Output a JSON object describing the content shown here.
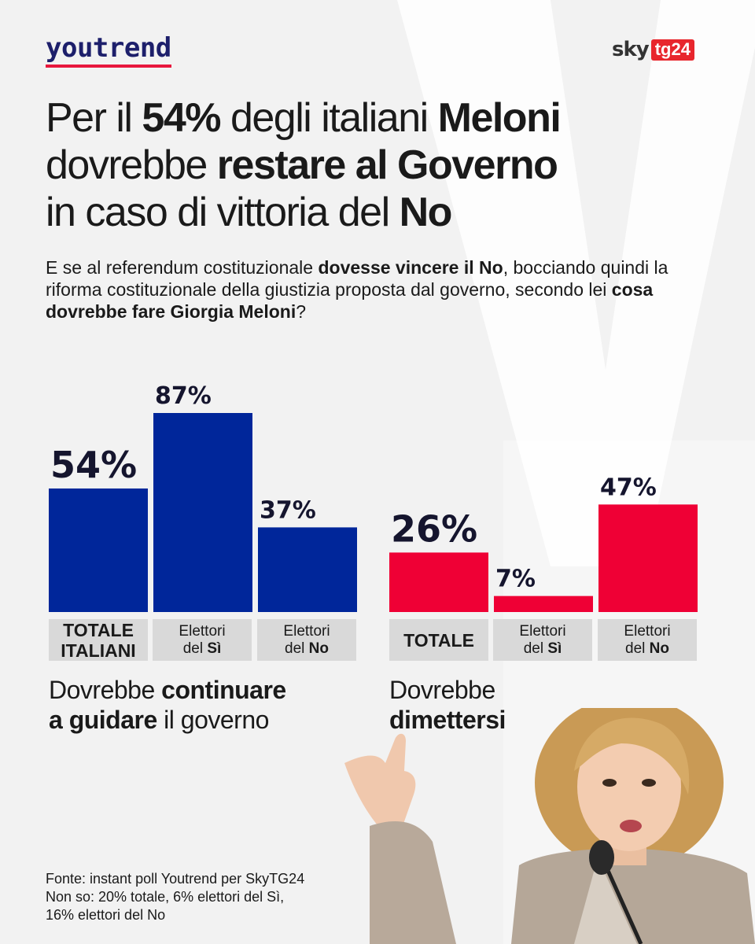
{
  "brand": {
    "left": "youtrend",
    "right_sky": "sky",
    "right_tg": "tg24"
  },
  "title": {
    "p1": "Per il ",
    "b1": "54%",
    "p2": " degli italiani ",
    "b2": "Meloni",
    "p3": "dovrebbe ",
    "b3": "restare al Governo",
    "p4": "in caso di vittoria del ",
    "b4": "No"
  },
  "subtitle": {
    "p1": "E se al referendum costituzionale ",
    "b1": "dovesse vincere il No",
    "p2": ", bocciando quindi la riforma costituzionale della giustizia proposta dal governo, secondo lei ",
    "b2": "cosa dovrebbe fare Giorgia Meloni",
    "p3": "?"
  },
  "chart_data": [
    {
      "type": "bar",
      "title": "Dovrebbe continuare a guidare il governo",
      "categories": [
        "TOTALE ITALIANI",
        "Elettori del Sì",
        "Elettori del No"
      ],
      "values": [
        54,
        87,
        37
      ],
      "value_labels": [
        "54%",
        "87%",
        "37%"
      ],
      "color": "#00269a",
      "caption": {
        "p1": "Dovrebbe ",
        "b1": "continuare",
        "b2": "a guidare",
        "p2": " il governo"
      }
    },
    {
      "type": "bar",
      "title": "Dovrebbe dimettersi",
      "categories": [
        "TOTALE",
        "Elettori del Sì",
        "Elettori del No"
      ],
      "values": [
        26,
        7,
        47
      ],
      "value_labels": [
        "26%",
        "7%",
        "47%"
      ],
      "color": "#ef0035",
      "caption": {
        "p1": "Dovrebbe",
        "b1": "dimettersi"
      }
    }
  ],
  "categories_ui": {
    "c1": {
      "line1": "TOTALE",
      "line2": "ITALIANI"
    },
    "c2": {
      "line1": "Elettori",
      "line2a": "del ",
      "line2b": "Sì"
    },
    "c3": {
      "line1": "Elettori",
      "line2a": "del ",
      "line2b": "No"
    },
    "c4": {
      "line1": "TOTALE"
    },
    "c5": {
      "line1": "Elettori",
      "line2a": "del ",
      "line2b": "Sì"
    },
    "c6": {
      "line1": "Elettori",
      "line2a": "del ",
      "line2b": "No"
    }
  },
  "source": {
    "line1": "Fonte: instant poll Youtrend per SkyTG24",
    "line2": "Non so: 20% totale, 6% elettori del Sì,",
    "line3": "16% elettori del No"
  }
}
